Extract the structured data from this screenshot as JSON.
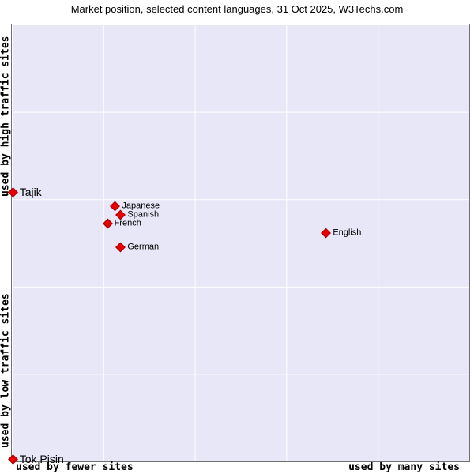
{
  "title": "Market position, selected content languages, 31 Oct 2025, W3Techs.com",
  "axes": {
    "y_top": "used by high traffic sites",
    "y_bottom": "used by low traffic sites",
    "x_left": "used by fewer sites",
    "x_right": "used by many sites"
  },
  "colors": {
    "plot_bg": "#e7e7f7",
    "grid": "#ffffff",
    "marker_fill": "#e80000",
    "marker_border": "#a00000"
  },
  "chart_data": {
    "type": "scatter",
    "title": "Market position, selected content languages, 31 Oct 2025, W3Techs.com",
    "x_axis": {
      "label_left": "used by fewer sites",
      "label_right": "used by many sites",
      "range": [
        0,
        1
      ],
      "scale": "qualitative"
    },
    "y_axis": {
      "label_bottom": "used by low traffic sites",
      "label_top": "used by high traffic sites",
      "range": [
        0,
        1
      ],
      "scale": "qualitative"
    },
    "grid": {
      "columns": 5,
      "rows": 5
    },
    "legend": "none",
    "points": [
      {
        "label": "Tajik",
        "x": 0.003,
        "y": 0.616,
        "emphasis": true
      },
      {
        "label": "Japanese",
        "x": 0.227,
        "y": 0.584,
        "emphasis": false
      },
      {
        "label": "Spanish",
        "x": 0.239,
        "y": 0.564,
        "emphasis": false
      },
      {
        "label": "French",
        "x": 0.21,
        "y": 0.544,
        "emphasis": false
      },
      {
        "label": "German",
        "x": 0.239,
        "y": 0.49,
        "emphasis": false
      },
      {
        "label": "English",
        "x": 0.688,
        "y": 0.523,
        "emphasis": false
      },
      {
        "label": "Tok Pisin",
        "x": 0.003,
        "y": 0.005,
        "emphasis": true
      }
    ]
  }
}
